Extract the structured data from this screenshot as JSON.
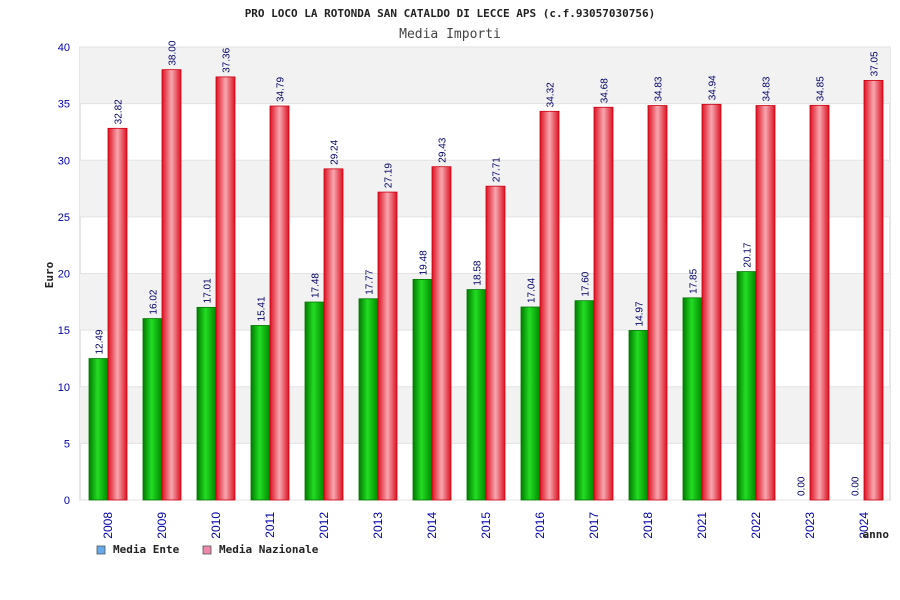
{
  "chart_data": {
    "type": "bar",
    "title": "PRO LOCO LA ROTONDA SAN CATALDO DI LECCE APS (c.f.93057030756)",
    "subtitle": "Media Importi",
    "ylabel": "Euro",
    "xlabel": "anno",
    "ylim": [
      0,
      40
    ],
    "yticks": [
      0,
      5,
      10,
      15,
      20,
      25,
      30,
      35,
      40
    ],
    "grid": true,
    "legend_position": "bottom-left",
    "categories": [
      "2008",
      "2009",
      "2010",
      "2011",
      "2012",
      "2013",
      "2014",
      "2015",
      "2016",
      "2017",
      "2018",
      "2021",
      "2022",
      "2023",
      "2024"
    ],
    "series": [
      {
        "name": "Media Ente",
        "color": "#11bb11",
        "legend_color": "#66aaee",
        "values": [
          12.49,
          16.02,
          17.01,
          15.41,
          17.48,
          17.77,
          19.48,
          18.58,
          17.04,
          17.6,
          14.97,
          17.85,
          20.17,
          0.0,
          0.0
        ],
        "labels": [
          "12.49",
          "16.02",
          "17.01",
          "15.41",
          "17.48",
          "17.77",
          "19.48",
          "18.58",
          "17.04",
          "17.60",
          "14.97",
          "17.85",
          "20.17",
          "0.00",
          "0.00"
        ]
      },
      {
        "name": "Media Nazionale",
        "color": "#ee2233",
        "legend_color": "#ee88aa",
        "values": [
          32.82,
          38.0,
          37.36,
          34.79,
          29.24,
          27.19,
          29.43,
          27.71,
          34.32,
          34.68,
          34.83,
          34.94,
          34.83,
          34.85,
          37.05
        ],
        "labels": [
          "32.82",
          "38.00",
          "37.36",
          "34.79",
          "29.24",
          "27.19",
          "29.43",
          "27.71",
          "34.32",
          "34.68",
          "34.83",
          "34.94",
          "34.83",
          "34.85",
          "37.05"
        ]
      }
    ]
  }
}
